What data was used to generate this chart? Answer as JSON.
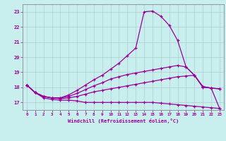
{
  "xlabel": "Windchill (Refroidissement éolien,°C)",
  "xlim": [
    -0.5,
    23.5
  ],
  "ylim": [
    16.5,
    23.5
  ],
  "xticks": [
    0,
    1,
    2,
    3,
    4,
    5,
    6,
    7,
    8,
    9,
    10,
    11,
    12,
    13,
    14,
    15,
    16,
    17,
    18,
    19,
    20,
    21,
    22,
    23
  ],
  "yticks": [
    17,
    18,
    19,
    20,
    21,
    22,
    23
  ],
  "bg_color": "#c8eeee",
  "line_color": "#990099",
  "grid_color": "#b0ccd0",
  "line1_x": [
    0,
    1,
    2,
    3,
    4,
    5,
    6,
    7,
    8,
    9,
    10,
    11,
    12,
    13,
    14,
    15,
    16,
    17,
    18,
    19,
    20,
    21,
    22,
    23
  ],
  "line1_y": [
    18.15,
    17.65,
    17.3,
    17.2,
    17.15,
    17.15,
    17.1,
    17.0,
    17.0,
    17.0,
    17.0,
    17.0,
    17.0,
    17.0,
    17.0,
    17.0,
    16.95,
    16.9,
    16.85,
    16.8,
    16.75,
    16.7,
    16.65,
    16.6
  ],
  "line2_x": [
    0,
    1,
    2,
    3,
    4,
    5,
    6,
    7,
    8,
    9,
    10,
    11,
    12,
    13,
    14,
    15,
    16,
    17,
    18,
    19,
    20,
    21,
    22,
    23
  ],
  "line2_y": [
    18.15,
    17.65,
    17.4,
    17.3,
    17.25,
    17.3,
    17.4,
    17.55,
    17.7,
    17.8,
    17.9,
    18.0,
    18.1,
    18.2,
    18.3,
    18.4,
    18.5,
    18.6,
    18.7,
    18.75,
    18.8,
    18.0,
    17.95,
    17.9
  ],
  "line3_x": [
    0,
    1,
    2,
    3,
    4,
    5,
    6,
    7,
    8,
    9,
    10,
    11,
    12,
    13,
    14,
    15,
    16,
    17,
    18,
    19,
    20,
    21,
    22,
    23
  ],
  "line3_y": [
    18.15,
    17.65,
    17.4,
    17.3,
    17.3,
    17.4,
    17.6,
    17.85,
    18.1,
    18.3,
    18.55,
    18.7,
    18.85,
    18.95,
    19.05,
    19.15,
    19.25,
    19.35,
    19.45,
    19.35,
    18.8,
    18.05,
    17.95,
    17.9
  ],
  "line4_x": [
    0,
    1,
    2,
    3,
    4,
    5,
    6,
    7,
    8,
    9,
    10,
    11,
    12,
    13,
    14,
    15,
    16,
    17,
    18,
    19,
    20,
    21,
    22,
    23
  ],
  "line4_y": [
    18.15,
    17.65,
    17.4,
    17.3,
    17.3,
    17.5,
    17.8,
    18.15,
    18.5,
    18.8,
    19.2,
    19.6,
    20.1,
    20.6,
    23.0,
    23.05,
    22.7,
    22.1,
    21.1,
    19.35,
    18.8,
    18.05,
    17.95,
    16.6
  ]
}
